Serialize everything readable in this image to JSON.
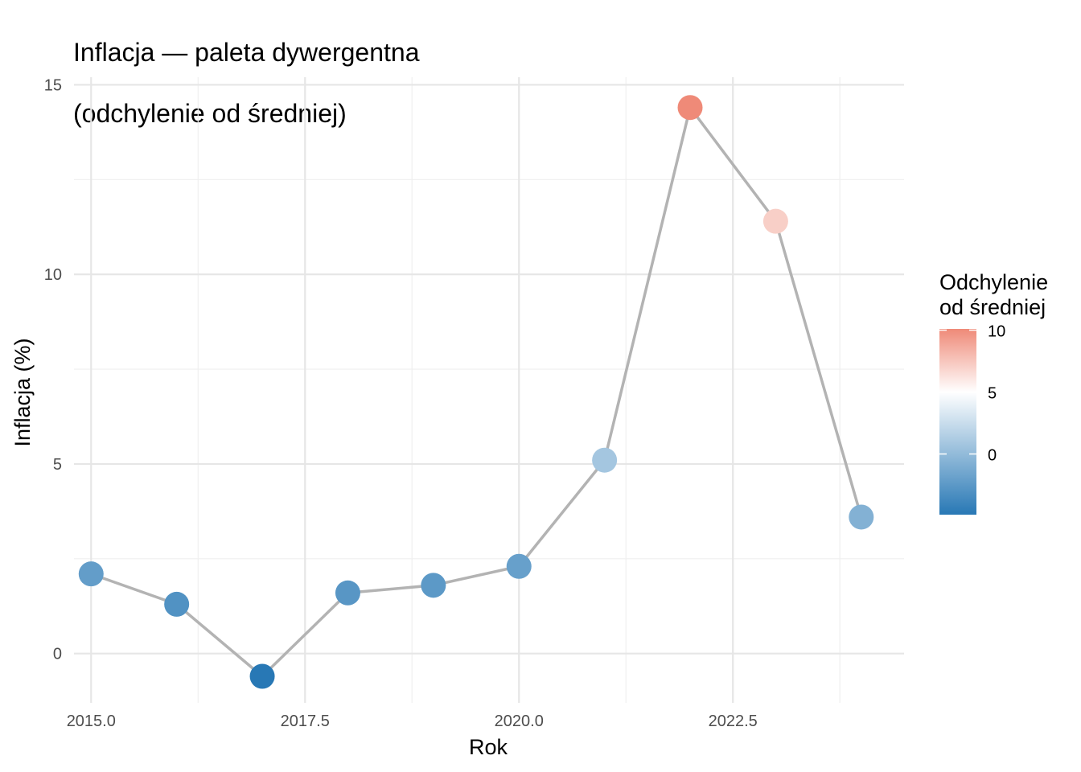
{
  "chart_data": {
    "type": "line",
    "title": "Inflacja — paleta dywergentna",
    "subtitle": "(odchylenie od średniej)",
    "xlabel": "Rok",
    "ylabel": "Inflacja (%)",
    "xlim": [
      2014.8,
      2024.5
    ],
    "ylim": [
      -1.3,
      15.2
    ],
    "x_ticks": [
      2015.0,
      2017.5,
      2020.0,
      2022.5
    ],
    "x_tick_labels": [
      "2015.0",
      "2017.5",
      "2020.0",
      "2022.5"
    ],
    "y_ticks": [
      0,
      5,
      10,
      15
    ],
    "y_tick_labels": [
      "0",
      "5",
      "10",
      "15"
    ],
    "grid": true,
    "series": [
      {
        "x": [
          2015,
          2016,
          2017,
          2018,
          2019,
          2020,
          2021,
          2022,
          2023,
          2024
        ],
        "y": [
          2.1,
          1.3,
          -0.6,
          1.6,
          1.8,
          2.3,
          5.1,
          14.4,
          11.4,
          3.6
        ],
        "deviation": [
          -2.2,
          -3.0,
          -4.9,
          -2.7,
          -2.5,
          -2.0,
          0.8,
          10.1,
          7.1,
          -0.7
        ]
      }
    ],
    "line_color": "#b3b3b3",
    "legend": {
      "title_line1": "Odchylenie",
      "title_line2": "od średniej",
      "position": "right",
      "min": -4.9,
      "mid": 5,
      "max": 10.1,
      "ticks": [
        0,
        5,
        10
      ],
      "tick_labels": [
        "0",
        "5",
        "10"
      ],
      "low_color": "#2878b5",
      "mid_color": "#ffffff",
      "high_color": "#ef8a78"
    }
  }
}
